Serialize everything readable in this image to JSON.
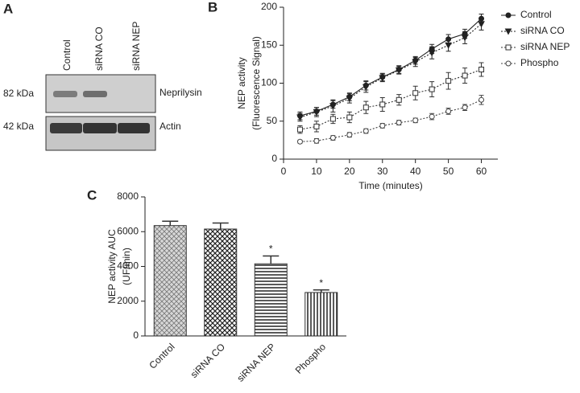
{
  "blot": {
    "panel_label": "A",
    "lanes": [
      "Control",
      "siRNA CO",
      "siRNA NEP"
    ],
    "rows": [
      {
        "weight": "82 kDa",
        "protein": "Neprilysin"
      },
      {
        "weight": "42 kDa",
        "protein": "Actin"
      }
    ]
  },
  "chart_data": [
    {
      "type": "line",
      "panel_label": "B",
      "ylabel": [
        "NEP activity",
        "(Fluorescence Signal)"
      ],
      "xlabel": "Time (minutes)",
      "x": [
        5,
        10,
        15,
        20,
        25,
        30,
        35,
        40,
        45,
        50,
        55,
        60
      ],
      "xlim": [
        0,
        65
      ],
      "xticks": [
        0,
        10,
        20,
        30,
        40,
        50,
        60
      ],
      "ylim": [
        0,
        200
      ],
      "yticks": [
        0,
        50,
        100,
        150,
        200
      ],
      "legend": "right",
      "series": [
        {
          "name": "Control",
          "color": "#222222",
          "marker": "circle-filled",
          "dash": "solid",
          "values": [
            57,
            63,
            72,
            82,
            97,
            108,
            118,
            130,
            145,
            158,
            165,
            185
          ],
          "errors": [
            5,
            5,
            5,
            5,
            6,
            5,
            5,
            5,
            6,
            6,
            6,
            6
          ]
        },
        {
          "name": "siRNA CO",
          "color": "#222222",
          "marker": "triangle-down",
          "dash": "dotted",
          "values": [
            55,
            62,
            70,
            80,
            95,
            107,
            117,
            128,
            140,
            150,
            160,
            178
          ],
          "errors": [
            5,
            6,
            8,
            6,
            7,
            5,
            5,
            6,
            8,
            8,
            8,
            8
          ]
        },
        {
          "name": "siRNA NEP",
          "color": "#333333",
          "marker": "square-open",
          "dash": "dotted",
          "values": [
            39,
            43,
            53,
            55,
            68,
            72,
            78,
            87,
            92,
            103,
            110,
            118
          ],
          "errors": [
            5,
            7,
            6,
            7,
            8,
            9,
            7,
            9,
            10,
            11,
            10,
            9
          ]
        },
        {
          "name": "Phospho",
          "color": "#444444",
          "marker": "circle-open",
          "dash": "dotted",
          "values": [
            23,
            24,
            28,
            32,
            37,
            44,
            48,
            51,
            56,
            63,
            68,
            78
          ],
          "errors": [
            2,
            3,
            3,
            3,
            3,
            3,
            3,
            3,
            4,
            4,
            4,
            6
          ]
        }
      ]
    },
    {
      "type": "bar",
      "panel_label": "C",
      "ylabel": [
        "NEP activity AUC",
        "(UF/min)"
      ],
      "categories": [
        "Control",
        "siRNA CO",
        "siRNA NEP",
        "Phospho"
      ],
      "values": [
        6350,
        6150,
        4150,
        2500
      ],
      "errors": [
        250,
        350,
        450,
        150
      ],
      "ylim": [
        0,
        8000
      ],
      "yticks": [
        0,
        2000,
        4000,
        6000,
        8000
      ],
      "color": "#333333",
      "annotations": [
        {
          "text": "*",
          "category": "siRNA NEP"
        },
        {
          "text": "*",
          "category": "Phospho"
        }
      ]
    }
  ]
}
